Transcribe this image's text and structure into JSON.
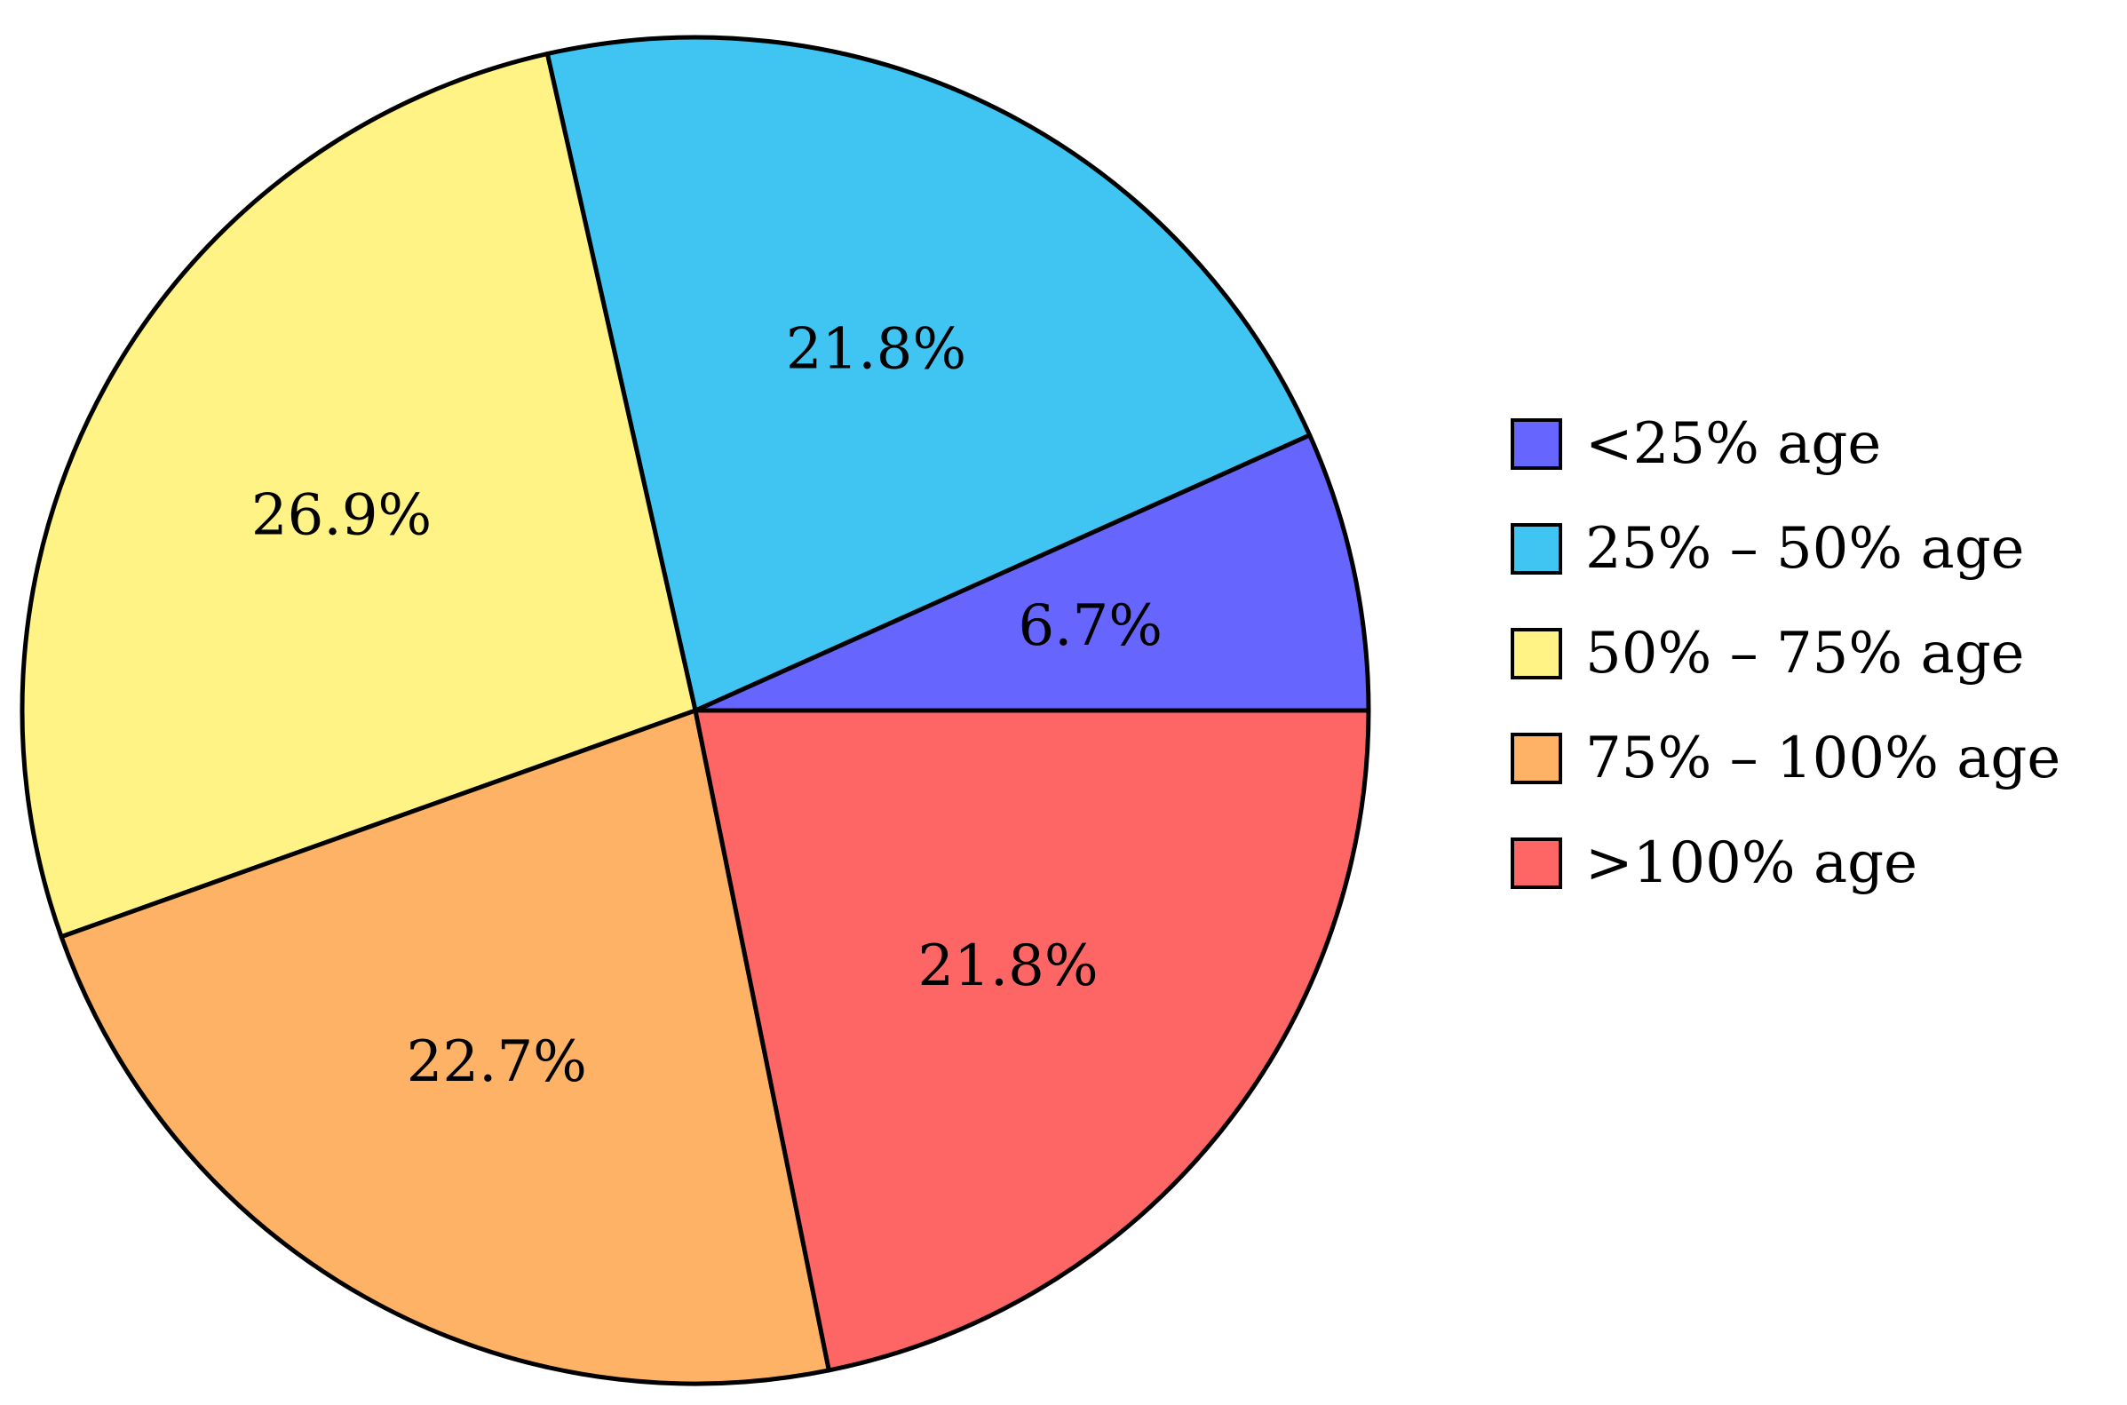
{
  "chart_data": {
    "type": "pie",
    "title": "",
    "slices": [
      {
        "label": "<25% age",
        "value": 6.7,
        "display": "6.7%",
        "color": "#6666ff"
      },
      {
        "label": "25% – 50% age",
        "value": 21.8,
        "display": "21.8%",
        "color": "#40c4f2"
      },
      {
        "label": "50% – 75% age",
        "value": 26.9,
        "display": "26.9%",
        "color": "#fef384"
      },
      {
        "label": "75% – 100% age",
        "value": 22.7,
        "display": "22.7%",
        "color": "#fdb266"
      },
      {
        "label": ">100% age",
        "value": 21.8,
        "display": "21.8%",
        "color": "#fe6666"
      }
    ],
    "start_angle_deg": 0,
    "direction": "counterclockwise",
    "legend_position": "right"
  }
}
